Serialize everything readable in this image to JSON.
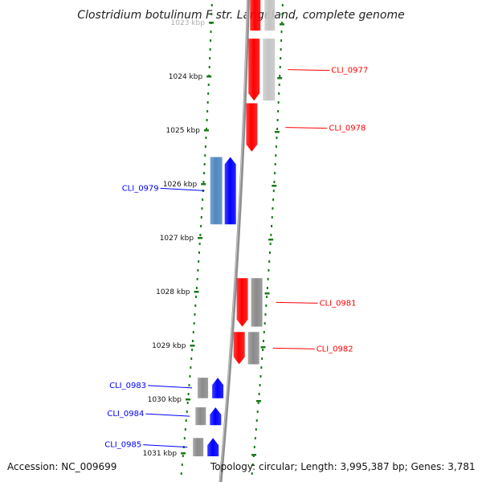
{
  "title": "Clostridium botulinum F str. Langeland, complete genome",
  "footer": {
    "accession": "Accession: NC_009699",
    "summary": "Topology: circular; Length: 3,995,387 bp; Genes: 3,781"
  },
  "colors": {
    "forward_strand": "#ff0000",
    "reverse_strand": "#0000ff",
    "cds_grey": "#8a8a8a",
    "reverse_cds_light": "#4f86c0",
    "dotted_track": "#1a7a1a",
    "backbone": "#8e8e8e"
  },
  "ticks": [
    {
      "kbp": 1023,
      "label": "1023 kbp"
    },
    {
      "kbp": 1024,
      "label": "1024 kbp"
    },
    {
      "kbp": 1025,
      "label": "1025 kbp"
    },
    {
      "kbp": 1026,
      "label": "1026 kbp"
    },
    {
      "kbp": 1027,
      "label": "1027 kbp"
    },
    {
      "kbp": 1028,
      "label": "1028 kbp"
    },
    {
      "kbp": 1029,
      "label": "1029 kbp"
    },
    {
      "kbp": 1030,
      "label": "1030 kbp"
    },
    {
      "kbp": 1031,
      "label": "1031 kbp"
    }
  ],
  "genes": [
    {
      "id": "pre",
      "label": "",
      "strand": "+",
      "start": 1022.8,
      "end": 1023.15,
      "light": false,
      "partial_top": true
    },
    {
      "id": "CLI_0977",
      "label": "CLI_0977",
      "strand": "+",
      "start": 1023.3,
      "end": 1024.45,
      "light": true
    },
    {
      "id": "CLI_0978",
      "label": "CLI_0978",
      "strand": "+",
      "start": 1024.5,
      "end": 1025.4,
      "light": false
    },
    {
      "id": "CLI_0979",
      "label": "CLI_0979",
      "strand": "-",
      "start": 1025.5,
      "end": 1026.75,
      "light": true
    },
    {
      "id": "CLI_0981",
      "label": "CLI_0981",
      "strand": "+",
      "start": 1027.75,
      "end": 1028.65,
      "light": false
    },
    {
      "id": "CLI_0982",
      "label": "CLI_0982",
      "strand": "+",
      "start": 1028.75,
      "end": 1029.35,
      "light": false
    },
    {
      "id": "CLI_0983",
      "label": "CLI_0983",
      "strand": "-",
      "start": 1029.6,
      "end": 1029.98,
      "light": false
    },
    {
      "id": "CLI_0984",
      "label": "CLI_0984",
      "strand": "-",
      "start": 1030.15,
      "end": 1030.48,
      "light": false
    },
    {
      "id": "CLI_0985",
      "label": "CLI_0985",
      "strand": "-",
      "start": 1030.72,
      "end": 1031.06,
      "light": false
    }
  ]
}
